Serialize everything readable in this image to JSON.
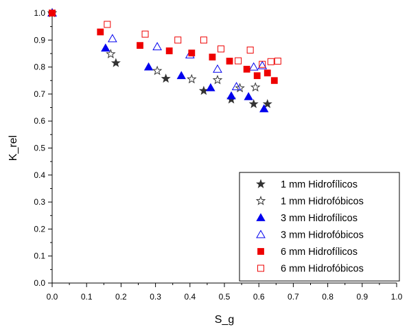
{
  "chart_data": {
    "type": "scatter",
    "title": "",
    "xlabel": "S_g",
    "ylabel": "K_rel",
    "xlim": [
      0.0,
      1.0
    ],
    "ylim": [
      0.0,
      1.0
    ],
    "x_ticks": [
      "0.0",
      "0.1",
      "0.2",
      "0.3",
      "0.4",
      "0.5",
      "0.6",
      "0.7",
      "0.8",
      "0.9",
      "1.0"
    ],
    "y_ticks": [
      "0.0",
      "0.1",
      "0.2",
      "0.3",
      "0.4",
      "0.5",
      "0.6",
      "0.7",
      "0.8",
      "0.9",
      "1.0"
    ],
    "grid": false,
    "legend_position": "bottom-right",
    "series": [
      {
        "name": "1 mm Hidrofílicos",
        "marker": "star",
        "filled": true,
        "color": "#333333",
        "points": [
          [
            0.0,
            1.0
          ],
          [
            0.185,
            0.815
          ],
          [
            0.33,
            0.757
          ],
          [
            0.44,
            0.712
          ],
          [
            0.52,
            0.68
          ],
          [
            0.585,
            0.663
          ],
          [
            0.625,
            0.663
          ]
        ]
      },
      {
        "name": "1 mm Hidrofóbicos",
        "marker": "star",
        "filled": false,
        "color": "#333333",
        "points": [
          [
            0.0,
            1.0
          ],
          [
            0.17,
            0.848
          ],
          [
            0.305,
            0.786
          ],
          [
            0.405,
            0.755
          ],
          [
            0.48,
            0.752
          ],
          [
            0.545,
            0.722
          ],
          [
            0.59,
            0.725
          ]
        ]
      },
      {
        "name": "3 mm Hidrofílicos",
        "marker": "triangle",
        "filled": true,
        "color": "#0000ee",
        "points": [
          [
            0.0,
            1.0
          ],
          [
            0.155,
            0.87
          ],
          [
            0.28,
            0.8
          ],
          [
            0.375,
            0.768
          ],
          [
            0.46,
            0.723
          ],
          [
            0.52,
            0.693
          ],
          [
            0.57,
            0.69
          ],
          [
            0.615,
            0.645
          ]
        ]
      },
      {
        "name": "3 mm Hidrofóbicos",
        "marker": "triangle",
        "filled": false,
        "color": "#0000ee",
        "points": [
          [
            0.0,
            1.0
          ],
          [
            0.175,
            0.905
          ],
          [
            0.305,
            0.875
          ],
          [
            0.4,
            0.845
          ],
          [
            0.48,
            0.792
          ],
          [
            0.535,
            0.727
          ],
          [
            0.585,
            0.8
          ],
          [
            0.61,
            0.805
          ]
        ]
      },
      {
        "name": "6 mm Hidrofílicos",
        "marker": "square",
        "filled": true,
        "color": "#ee0000",
        "points": [
          [
            0.0,
            1.0
          ],
          [
            0.14,
            0.93
          ],
          [
            0.255,
            0.88
          ],
          [
            0.34,
            0.86
          ],
          [
            0.405,
            0.852
          ],
          [
            0.465,
            0.837
          ],
          [
            0.515,
            0.822
          ],
          [
            0.565,
            0.792
          ],
          [
            0.595,
            0.768
          ],
          [
            0.625,
            0.778
          ],
          [
            0.645,
            0.75
          ]
        ]
      },
      {
        "name": "6 mm Hidrofóbicos",
        "marker": "square",
        "filled": false,
        "color": "#ee0000",
        "points": [
          [
            0.0,
            1.0
          ],
          [
            0.16,
            0.958
          ],
          [
            0.27,
            0.922
          ],
          [
            0.365,
            0.9
          ],
          [
            0.44,
            0.9
          ],
          [
            0.49,
            0.867
          ],
          [
            0.54,
            0.823
          ],
          [
            0.575,
            0.863
          ],
          [
            0.61,
            0.81
          ],
          [
            0.635,
            0.82
          ],
          [
            0.655,
            0.822
          ]
        ]
      }
    ]
  }
}
